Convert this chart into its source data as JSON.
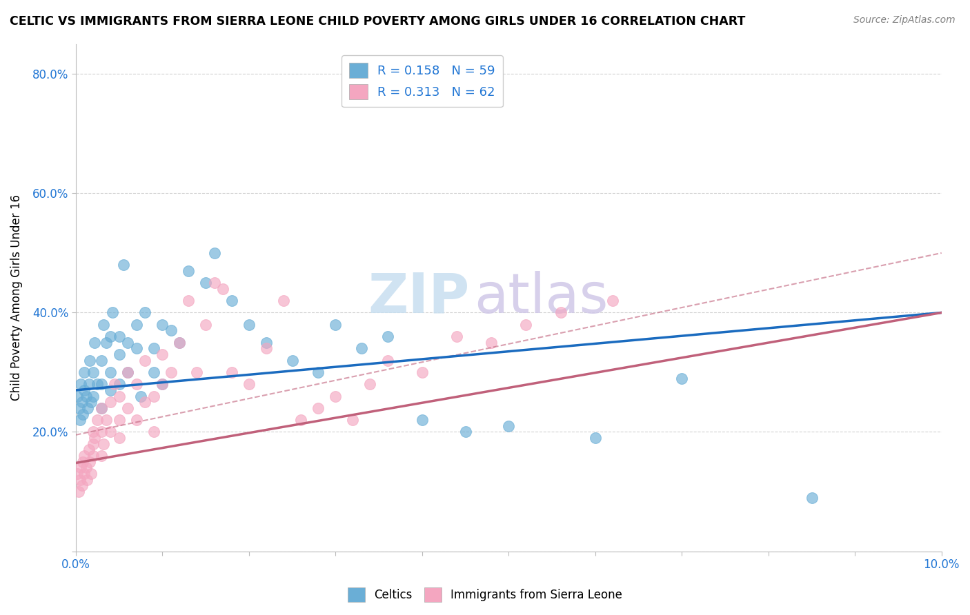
{
  "title": "CELTIC VS IMMIGRANTS FROM SIERRA LEONE CHILD POVERTY AMONG GIRLS UNDER 16 CORRELATION CHART",
  "source": "Source: ZipAtlas.com",
  "ylabel": "Child Poverty Among Girls Under 16",
  "xlabel": "",
  "xlim": [
    0.0,
    0.1
  ],
  "ylim": [
    0.0,
    0.85
  ],
  "yticks": [
    0.0,
    0.2,
    0.4,
    0.6,
    0.8
  ],
  "ytick_labels": [
    "",
    "20.0%",
    "40.0%",
    "60.0%",
    "80.0%"
  ],
  "xticks": [
    0.0,
    0.01,
    0.02,
    0.03,
    0.04,
    0.05,
    0.06,
    0.07,
    0.08,
    0.09,
    0.1
  ],
  "xtick_labels": [
    "0.0%",
    "",
    "",
    "",
    "",
    "",
    "",
    "",
    "",
    "",
    "10.0%"
  ],
  "celtics_color": "#6aaed6",
  "immigrants_color": "#f4a6c0",
  "celtics_line_color": "#1a6bbf",
  "immigrants_line_color": "#c0607a",
  "celtics_R": 0.158,
  "celtics_N": 59,
  "immigrants_R": 0.313,
  "immigrants_N": 62,
  "watermark_zip": "ZIP",
  "watermark_atlas": "atlas",
  "legend_label_celtics": "Celtics",
  "legend_label_immigrants": "Immigrants from Sierra Leone",
  "celtics_x": [
    0.0002,
    0.0004,
    0.0005,
    0.0006,
    0.0007,
    0.0008,
    0.001,
    0.001,
    0.0012,
    0.0014,
    0.0015,
    0.0016,
    0.0018,
    0.002,
    0.002,
    0.0022,
    0.0025,
    0.003,
    0.003,
    0.003,
    0.0032,
    0.0035,
    0.004,
    0.004,
    0.004,
    0.0042,
    0.005,
    0.005,
    0.005,
    0.0055,
    0.006,
    0.006,
    0.007,
    0.007,
    0.0075,
    0.008,
    0.009,
    0.009,
    0.01,
    0.01,
    0.011,
    0.012,
    0.013,
    0.015,
    0.016,
    0.018,
    0.02,
    0.022,
    0.025,
    0.028,
    0.03,
    0.033,
    0.036,
    0.04,
    0.045,
    0.05,
    0.06,
    0.07,
    0.085
  ],
  "celtics_y": [
    0.26,
    0.24,
    0.22,
    0.28,
    0.25,
    0.23,
    0.27,
    0.3,
    0.26,
    0.24,
    0.28,
    0.32,
    0.25,
    0.3,
    0.26,
    0.35,
    0.28,
    0.32,
    0.28,
    0.24,
    0.38,
    0.35,
    0.3,
    0.36,
    0.27,
    0.4,
    0.33,
    0.28,
    0.36,
    0.48,
    0.35,
    0.3,
    0.38,
    0.34,
    0.26,
    0.4,
    0.3,
    0.34,
    0.38,
    0.28,
    0.37,
    0.35,
    0.47,
    0.45,
    0.5,
    0.42,
    0.38,
    0.35,
    0.32,
    0.3,
    0.38,
    0.34,
    0.36,
    0.22,
    0.2,
    0.21,
    0.19,
    0.29,
    0.09
  ],
  "immigrants_x": [
    0.0002,
    0.0003,
    0.0005,
    0.0006,
    0.0007,
    0.0008,
    0.001,
    0.001,
    0.0012,
    0.0013,
    0.0015,
    0.0016,
    0.0018,
    0.002,
    0.002,
    0.002,
    0.0022,
    0.0025,
    0.003,
    0.003,
    0.003,
    0.0032,
    0.0035,
    0.004,
    0.004,
    0.0045,
    0.005,
    0.005,
    0.005,
    0.006,
    0.006,
    0.007,
    0.007,
    0.008,
    0.008,
    0.009,
    0.009,
    0.01,
    0.01,
    0.011,
    0.012,
    0.013,
    0.014,
    0.015,
    0.016,
    0.017,
    0.018,
    0.02,
    0.022,
    0.024,
    0.026,
    0.028,
    0.03,
    0.032,
    0.034,
    0.036,
    0.04,
    0.044,
    0.048,
    0.052,
    0.056,
    0.062
  ],
  "immigrants_y": [
    0.13,
    0.1,
    0.12,
    0.14,
    0.11,
    0.15,
    0.13,
    0.16,
    0.14,
    0.12,
    0.17,
    0.15,
    0.13,
    0.2,
    0.16,
    0.18,
    0.19,
    0.22,
    0.2,
    0.16,
    0.24,
    0.18,
    0.22,
    0.25,
    0.2,
    0.28,
    0.22,
    0.26,
    0.19,
    0.3,
    0.24,
    0.28,
    0.22,
    0.32,
    0.25,
    0.26,
    0.2,
    0.28,
    0.33,
    0.3,
    0.35,
    0.42,
    0.3,
    0.38,
    0.45,
    0.44,
    0.3,
    0.28,
    0.34,
    0.42,
    0.22,
    0.24,
    0.26,
    0.22,
    0.28,
    0.32,
    0.3,
    0.36,
    0.35,
    0.38,
    0.4,
    0.42
  ]
}
